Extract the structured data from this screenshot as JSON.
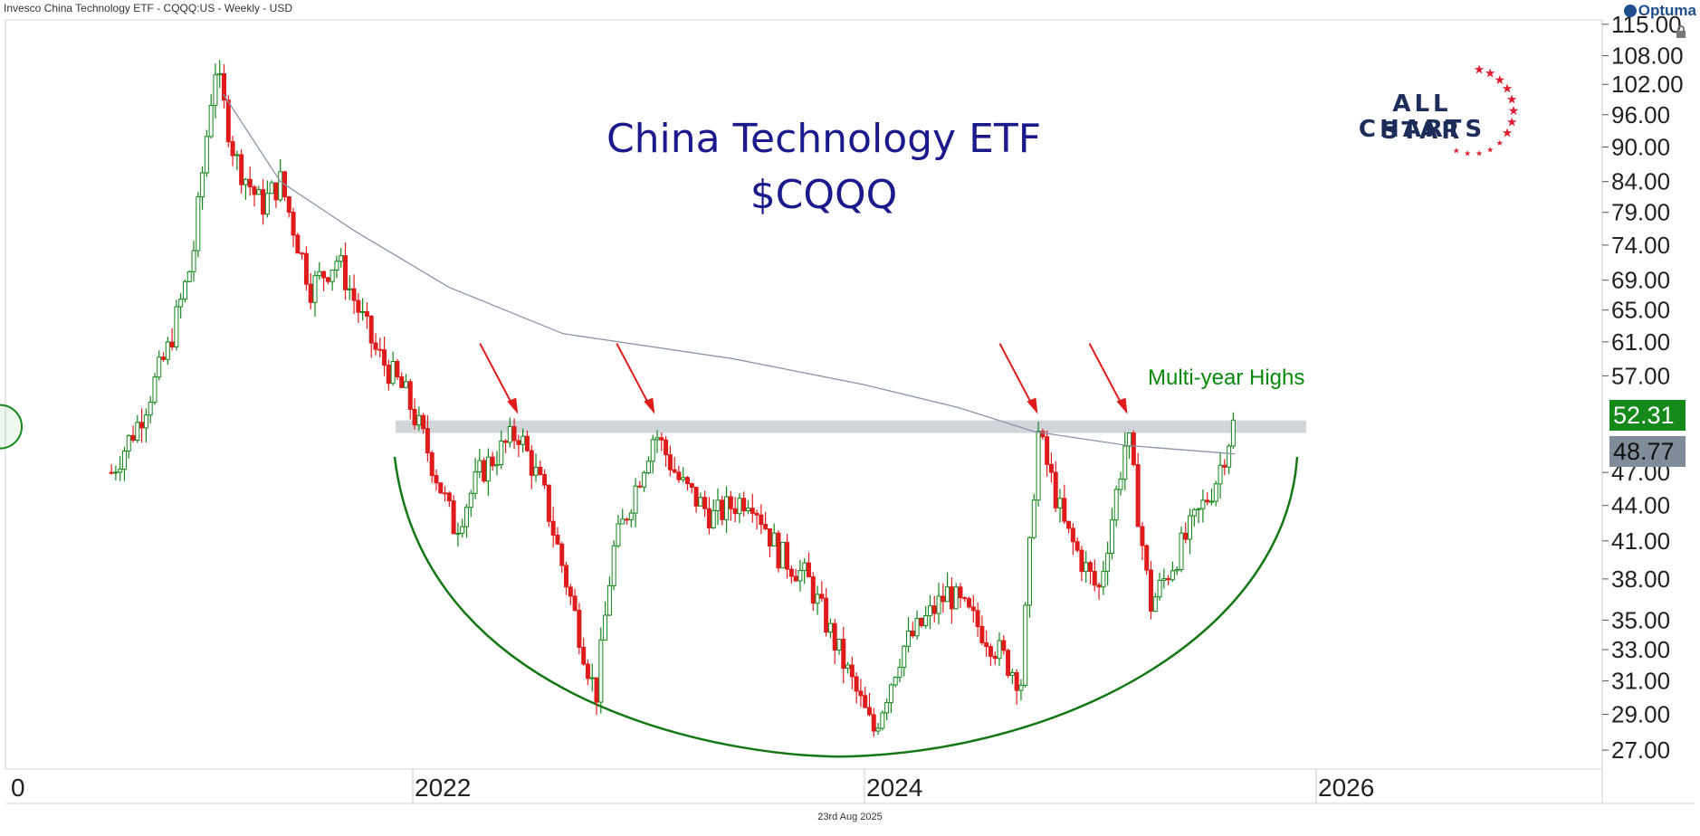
{
  "header": {
    "instrument": "Invesco China Technology ETF - CQQQ:US - Weekly - USD",
    "brand": "Optuma"
  },
  "chart_data": {
    "type": "candlestick",
    "title": "China Technology ETF",
    "subtitle": "$CQQQ",
    "yscale": "log",
    "ylim": [
      26,
      116
    ],
    "y_ticks": [
      "115.00",
      "108.00",
      "102.00",
      "96.00",
      "90.00",
      "84.00",
      "79.00",
      "74.00",
      "69.00",
      "65.00",
      "61.00",
      "57.00",
      "47.00",
      "44.00",
      "41.00",
      "38.00",
      "35.00",
      "33.00",
      "31.00",
      "29.00",
      "27.00"
    ],
    "x_ticks": [
      "0",
      "2022",
      "2024",
      "2026"
    ],
    "date_label": "23rd Aug 2025",
    "annotation": "Multi-year Highs",
    "last_price": "52.31",
    "moving_average_value": "48.77",
    "resistance_level": 51.5,
    "price_path": [
      [
        "2020-09-01",
        47
      ],
      [
        "2020-10-15",
        52
      ],
      [
        "2020-12-01",
        60
      ],
      [
        "2021-01-10",
        72
      ],
      [
        "2021-02-15",
        106
      ],
      [
        "2021-03-20",
        88
      ],
      [
        "2021-05-01",
        80
      ],
      [
        "2021-06-01",
        84
      ],
      [
        "2021-07-20",
        68
      ],
      [
        "2021-09-01",
        72
      ],
      [
        "2021-11-01",
        60
      ],
      [
        "2021-12-20",
        55
      ],
      [
        "2022-01-20",
        50
      ],
      [
        "2022-03-10",
        42
      ],
      [
        "2022-04-20",
        47
      ],
      [
        "2022-06-20",
        51
      ],
      [
        "2022-08-01",
        45
      ],
      [
        "2022-10-24",
        30
      ],
      [
        "2022-11-20",
        40
      ],
      [
        "2023-01-27",
        51
      ],
      [
        "2023-03-10",
        46
      ],
      [
        "2023-05-01",
        43
      ],
      [
        "2023-07-01",
        45
      ],
      [
        "2023-08-15",
        40
      ],
      [
        "2023-10-01",
        38
      ],
      [
        "2024-01-15",
        28
      ],
      [
        "2024-03-01",
        33
      ],
      [
        "2024-05-15",
        37
      ],
      [
        "2024-07-15",
        34
      ],
      [
        "2024-09-10",
        31
      ],
      [
        "2024-10-07",
        51
      ],
      [
        "2024-11-20",
        42
      ],
      [
        "2025-01-13",
        37
      ],
      [
        "2025-03-01",
        51
      ],
      [
        "2025-04-07",
        36
      ],
      [
        "2025-06-01",
        41
      ],
      [
        "2025-07-20",
        46
      ],
      [
        "2025-08-22",
        52.3
      ]
    ],
    "moving_average": [
      [
        "2021-03-01",
        100
      ],
      [
        "2021-06-01",
        84
      ],
      [
        "2021-10-01",
        76
      ],
      [
        "2022-03-01",
        68
      ],
      [
        "2022-09-01",
        62
      ],
      [
        "2023-06-01",
        59
      ],
      [
        "2024-01-01",
        56
      ],
      [
        "2024-06-01",
        53.5
      ],
      [
        "2024-10-01",
        51
      ],
      [
        "2025-03-01",
        49.6
      ],
      [
        "2025-08-22",
        48.77
      ]
    ],
    "markers": [
      "2022-06-20",
      "2023-01-27",
      "2024-10-07",
      "2025-03-01"
    ]
  }
}
